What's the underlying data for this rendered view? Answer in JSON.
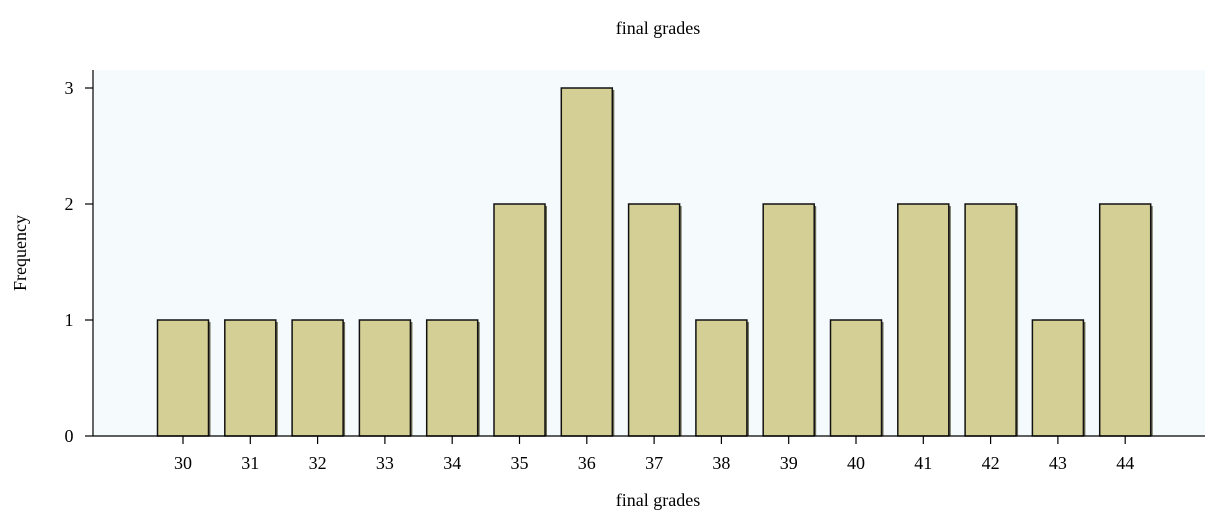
{
  "chart_data": {
    "type": "bar",
    "title": "final grades",
    "xlabel": "final grades",
    "ylabel": "Frequency",
    "categories": [
      "30",
      "31",
      "32",
      "33",
      "34",
      "35",
      "36",
      "37",
      "38",
      "39",
      "40",
      "41",
      "42",
      "43",
      "44"
    ],
    "values": [
      1,
      1,
      1,
      1,
      1,
      2,
      3,
      2,
      1,
      2,
      1,
      2,
      2,
      1,
      2
    ],
    "ylim": [
      0,
      3
    ],
    "yticks": [
      0,
      1,
      2,
      3
    ],
    "grid": false,
    "legend": "none",
    "colors": {
      "bar_fill": "#d4d095",
      "bar_stroke": "#111111",
      "plot_background": "#f5fafd"
    }
  }
}
